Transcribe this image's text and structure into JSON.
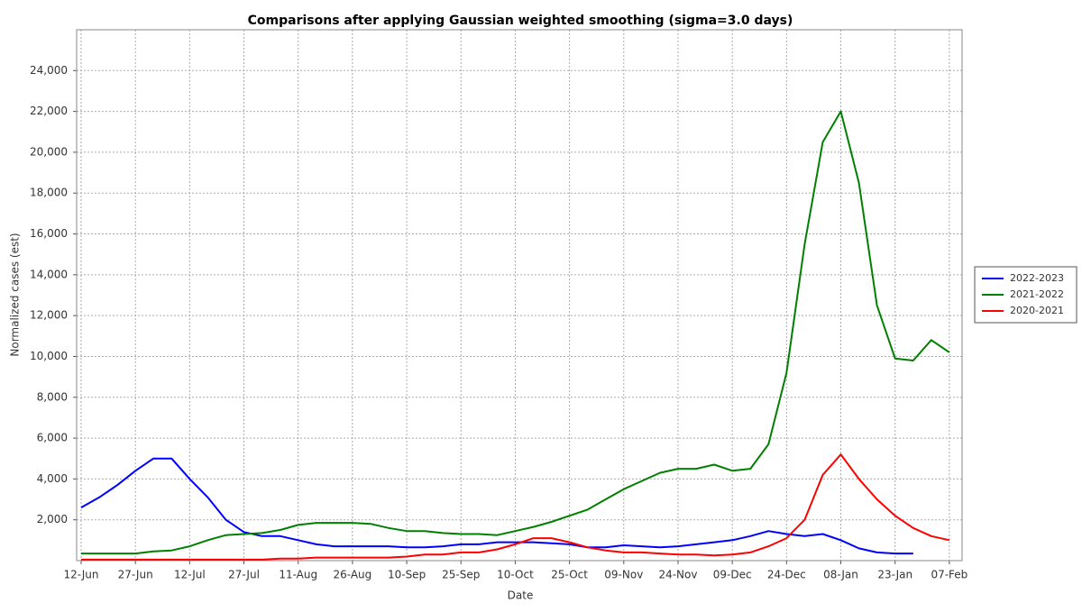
{
  "chart_data": {
    "type": "line",
    "title": "Comparisons after applying Gaussian weighted smoothing (sigma=3.0 days)",
    "x_label": "Date",
    "y_label": "Normalized cases (est)",
    "categories": [
      "12-Jun",
      null,
      null,
      "27-Jun",
      null,
      null,
      "12-Jul",
      null,
      null,
      "27-Jul",
      null,
      null,
      "11-Aug",
      null,
      null,
      "26-Aug",
      null,
      null,
      "10-Sep",
      null,
      null,
      "25-Sep",
      null,
      null,
      "10-Oct",
      null,
      null,
      "25-Oct",
      null,
      null,
      "09-Nov",
      null,
      null,
      "24-Nov",
      null,
      null,
      "09-Dec",
      null,
      null,
      "24-Dec",
      null,
      null,
      "08-Jan",
      null,
      null,
      "23-Jan",
      null,
      null,
      "07-Feb"
    ],
    "series": [
      {
        "name": "2022-2023",
        "color": "#0000ff",
        "values": [
          2600,
          3100,
          3700,
          4400,
          5000,
          5000,
          4000,
          3100,
          2000,
          1400,
          1200,
          1200,
          1000,
          800,
          700,
          700,
          700,
          700,
          650,
          650,
          700,
          800,
          800,
          900,
          900,
          900,
          850,
          800,
          650,
          650,
          750,
          700,
          650,
          700,
          800,
          900,
          1000,
          1200,
          1450,
          1300,
          1200,
          1300,
          1000,
          600,
          400,
          350,
          350,
          null,
          null
        ]
      },
      {
        "name": "2021-2022",
        "color": "#008000",
        "values": [
          350,
          350,
          350,
          350,
          450,
          500,
          700,
          1000,
          1250,
          1300,
          1350,
          1500,
          1750,
          1850,
          1850,
          1850,
          1800,
          1600,
          1450,
          1450,
          1350,
          1300,
          1300,
          1250,
          1450,
          1650,
          1900,
          2200,
          2500,
          3000,
          3500,
          3900,
          4300,
          4500,
          4500,
          4700,
          4400,
          4500,
          5700,
          9200,
          15500,
          20500,
          22000,
          18500,
          12500,
          9900,
          9800,
          10800,
          10200
        ]
      },
      {
        "name": "2020-2021",
        "color": "#ff0000",
        "values": [
          50,
          50,
          50,
          50,
          50,
          50,
          50,
          50,
          50,
          50,
          50,
          100,
          100,
          150,
          150,
          150,
          150,
          150,
          200,
          300,
          300,
          400,
          400,
          550,
          800,
          1100,
          1100,
          900,
          650,
          500,
          400,
          400,
          350,
          300,
          300,
          250,
          300,
          400,
          700,
          1100,
          2000,
          4200,
          5200,
          4000,
          3000,
          2200,
          1600,
          1200,
          1000
        ]
      }
    ],
    "ylim": [
      0,
      26000
    ],
    "yticks": [
      {
        "value": 2000,
        "label": "2,000"
      },
      {
        "value": 4000,
        "label": "4,000"
      },
      {
        "value": 6000,
        "label": "6,000"
      },
      {
        "value": 8000,
        "label": "8,000"
      },
      {
        "value": 10000,
        "label": "10,000"
      },
      {
        "value": 12000,
        "label": "12,000"
      },
      {
        "value": 14000,
        "label": "14,000"
      },
      {
        "value": 16000,
        "label": "16,000"
      },
      {
        "value": 18000,
        "label": "18,000"
      },
      {
        "value": 20000,
        "label": "20,000"
      },
      {
        "value": 22000,
        "label": "22,000"
      },
      {
        "value": 24000,
        "label": "24,000"
      }
    ],
    "grid": true,
    "legend": "right"
  }
}
